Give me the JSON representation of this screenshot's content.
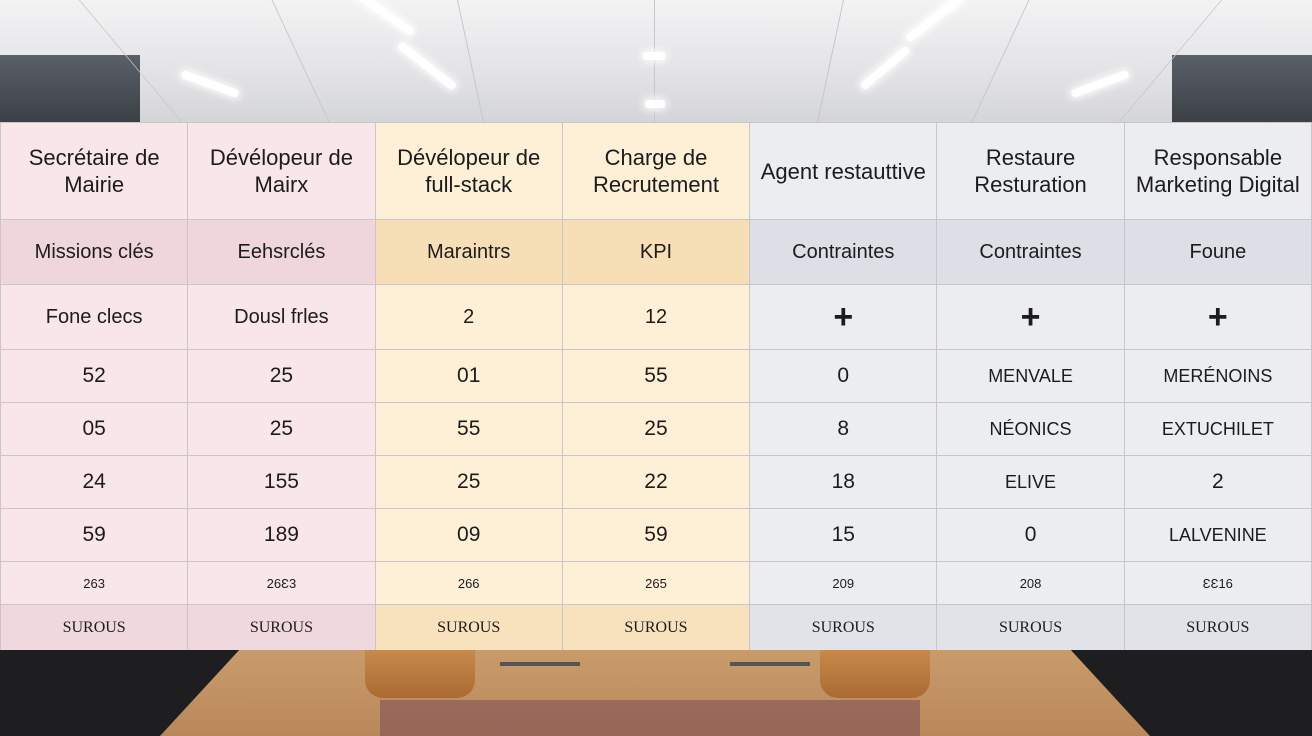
{
  "headers": [
    "Secrétaire de Mairie",
    "Dévélopeur de Mairx",
    "Dévélopeur de full-stack",
    "Charge de Recrutement",
    "Agent restauttive",
    "Restaure Resturation",
    "Responsable Marketing Digital"
  ],
  "subheaders": [
    "Missions clés",
    "Eehsrclés",
    "Maraintrs",
    "KPI",
    "Contraintes",
    "Contraintes",
    "Foune"
  ],
  "row3": [
    "Fone clecs",
    "Dousl frles",
    "2",
    "12",
    "+",
    "+",
    "+"
  ],
  "rows": [
    [
      "52",
      "25",
      "01",
      "55",
      "0",
      "MENVALE",
      "MERÉNOINS"
    ],
    [
      "05",
      "25",
      "55",
      "25",
      "8",
      "NÉONICS",
      "EXTUCHILET"
    ],
    [
      "24",
      "155",
      "25",
      "22",
      "18",
      "ELIVE",
      "2"
    ],
    [
      "59",
      "189",
      "09",
      "59",
      "15",
      "0",
      "LALVENINE"
    ]
  ],
  "tiny_row": [
    "263",
    "26Ɛ3",
    "266",
    "265",
    "209",
    "208",
    "ƐƐ16"
  ],
  "footer": [
    "SUROUS",
    "SUROUS",
    "SUROUS",
    "SUROUS",
    "SUROUS",
    "SUROUS",
    "SUROUS"
  ]
}
